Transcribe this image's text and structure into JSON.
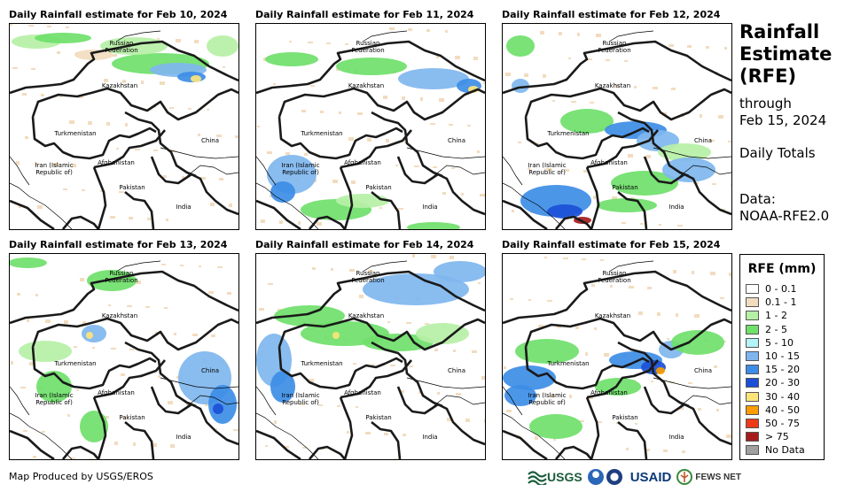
{
  "panels": [
    {
      "title": "Daily Rainfall estimate for Feb 10, 2024",
      "date": "Feb 10, 2024"
    },
    {
      "title": "Daily Rainfall estimate for Feb 11, 2024",
      "date": "Feb 11, 2024"
    },
    {
      "title": "Daily Rainfall estimate for Feb 12, 2024",
      "date": "Feb 12, 2024"
    },
    {
      "title": "Daily Rainfall estimate for Feb 13, 2024",
      "date": "Feb 13, 2024"
    },
    {
      "title": "Daily Rainfall estimate for Feb 14, 2024",
      "date": "Feb 14, 2024"
    },
    {
      "title": "Daily Rainfall estimate for Feb 15, 2024",
      "date": "Feb 15, 2024"
    }
  ],
  "map_labels": {
    "russia_1": "Russian",
    "russia_2": "Federation",
    "kazakhstan": "Kazakhstan",
    "turkmenistan": "Turkmenistan",
    "china": "China",
    "iran_1": "Iran  (Islamic",
    "iran_2": "Republic of)",
    "afghanistan": "Afghanistan",
    "pakistan": "Pakistan",
    "india": "India"
  },
  "sidebar": {
    "title_1": "Rainfall",
    "title_2": "Estimate",
    "title_3": "(RFE)",
    "through": "through",
    "through_date": "Feb 15, 2024",
    "daily_totals": "Daily Totals",
    "data_label": "Data:",
    "data_source": "NOAA-RFE2.0"
  },
  "legend": {
    "title": "RFE (mm)",
    "items": [
      {
        "label": "0 - 0.1",
        "color": "#ffffff"
      },
      {
        "label": "0.1 - 1",
        "color": "#f2dcbf"
      },
      {
        "label": "1 - 2",
        "color": "#b6f0a6"
      },
      {
        "label": "2 - 5",
        "color": "#6fe06a"
      },
      {
        "label": "5 - 10",
        "color": "#b4f3f6"
      },
      {
        "label": "10 - 15",
        "color": "#7fb6ee"
      },
      {
        "label": "15 - 20",
        "color": "#3d8de6"
      },
      {
        "label": "20 - 30",
        "color": "#1b4fd6"
      },
      {
        "label": "30 - 40",
        "color": "#fde47a"
      },
      {
        "label": "40 - 50",
        "color": "#fb9d00"
      },
      {
        "label": "50 - 75",
        "color": "#ee3a16"
      },
      {
        "label": "> 75",
        "color": "#a61c1c"
      },
      {
        "label": "No Data",
        "color": "#a0a0a0"
      }
    ]
  },
  "footer": {
    "credit": "Map Produced by USGS/EROS",
    "logo_usgs": "USGS",
    "logo_usaid": "USAID",
    "logo_fews": "FEWS NET"
  }
}
